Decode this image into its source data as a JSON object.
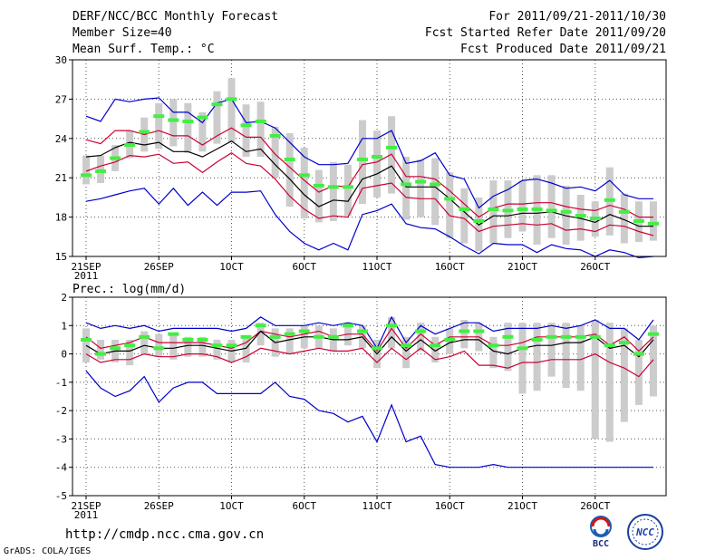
{
  "header": {
    "title": "DERF/NCC/BCC Monthly Forecast",
    "member_size": "Member Size=40",
    "variable": "Mean Surf. Temp.: °C",
    "forecast_period": "For 2011/09/21-2011/10/30",
    "start_date": "Fcst Started Refer Date 2011/09/20",
    "produced_date": "Fcst Produced Date 2011/09/21"
  },
  "footer": {
    "url": "http://cmdp.ncc.cma.gov.cn",
    "credit": "GrADS: COLA/IGES",
    "logo_bcc": "BCC",
    "logo_ncc": "NCC"
  },
  "colors": {
    "ensemble_mean": "#000000",
    "spread": "#cc0033",
    "extremes": "#0000cc",
    "members_median": "#44ee44",
    "members_box": "#cccccc"
  },
  "chart_data": [
    {
      "type": "line",
      "title": "Mean Surf. Temp.: °C",
      "ylim": [
        15,
        30
      ],
      "ylabel_ticks": [
        "30",
        "27",
        "24",
        "21",
        "18",
        "15"
      ],
      "yticks": [
        30,
        27,
        24,
        21,
        18,
        15
      ],
      "xticks": [
        {
          "label": "21SEP",
          "sublabel": "2011",
          "day": 0
        },
        {
          "label": "26SEP",
          "day": 5
        },
        {
          "label": "1OCT",
          "day": 10
        },
        {
          "label": "6OCT",
          "day": 15
        },
        {
          "label": "11OCT",
          "day": 20
        },
        {
          "label": "16OCT",
          "day": 25
        },
        {
          "label": "21OCT",
          "day": 30
        },
        {
          "label": "26OCT",
          "day": 35
        }
      ],
      "x_days": [
        0,
        1,
        2,
        3,
        4,
        5,
        6,
        7,
        8,
        9,
        10,
        11,
        12,
        13,
        14,
        15,
        16,
        17,
        18,
        19,
        20,
        21,
        22,
        23,
        24,
        25,
        26,
        27,
        28,
        29,
        30,
        31,
        32,
        33,
        34,
        35,
        36,
        37,
        38,
        39
      ],
      "series": [
        {
          "name": "max",
          "role": "extremes",
          "values": [
            25.7,
            25.3,
            27.0,
            26.8,
            27.0,
            27.1,
            26.0,
            26.0,
            25.2,
            26.7,
            27.0,
            25.2,
            25.3,
            24.8,
            23.7,
            22.6,
            22.0,
            22.0,
            22.1,
            24.0,
            24.0,
            24.6,
            22.1,
            22.3,
            22.9,
            21.2,
            20.9,
            18.7,
            19.6,
            20.1,
            20.8,
            20.9,
            20.6,
            20.2,
            20.3,
            20.0,
            20.8,
            19.7,
            19.4,
            19.4
          ]
        },
        {
          "name": "upper",
          "role": "spread",
          "values": [
            23.9,
            23.6,
            24.6,
            24.6,
            24.3,
            24.6,
            24.2,
            24.2,
            23.5,
            24.2,
            24.8,
            24.1,
            24.1,
            22.8,
            21.8,
            20.8,
            19.9,
            20.4,
            20.3,
            22.0,
            22.2,
            22.8,
            21.1,
            21.1,
            20.9,
            20.0,
            19.0,
            18.0,
            18.7,
            19.0,
            19.0,
            19.1,
            19.1,
            18.8,
            18.6,
            18.5,
            18.9,
            18.6,
            18.0,
            18.0
          ]
        },
        {
          "name": "mean",
          "role": "ensemble_mean",
          "values": [
            22.6,
            22.7,
            23.3,
            23.7,
            23.5,
            23.7,
            23.0,
            23.0,
            22.6,
            23.2,
            23.8,
            23.0,
            23.2,
            22.0,
            20.9,
            19.7,
            18.8,
            19.3,
            19.2,
            20.9,
            21.3,
            21.9,
            20.3,
            20.3,
            20.3,
            19.4,
            18.4,
            17.4,
            18.1,
            18.1,
            18.3,
            18.3,
            18.4,
            18.1,
            17.9,
            17.6,
            18.2,
            17.8,
            17.3,
            17.3
          ]
        },
        {
          "name": "lower",
          "role": "spread",
          "values": [
            21.5,
            21.9,
            22.2,
            22.7,
            22.6,
            22.8,
            22.1,
            22.2,
            21.4,
            22.2,
            22.9,
            22.1,
            21.9,
            20.9,
            19.6,
            18.6,
            17.9,
            18.1,
            18.0,
            20.2,
            20.4,
            20.6,
            19.5,
            19.4,
            19.4,
            18.1,
            17.9,
            16.9,
            17.3,
            17.4,
            17.5,
            17.4,
            17.5,
            17.0,
            17.1,
            16.9,
            17.4,
            17.3,
            16.9,
            16.6
          ]
        },
        {
          "name": "min",
          "role": "extremes",
          "values": [
            19.2,
            19.4,
            19.7,
            20.0,
            20.2,
            19.0,
            20.2,
            18.9,
            19.9,
            18.9,
            19.9,
            19.9,
            20.0,
            18.2,
            16.9,
            16.0,
            15.5,
            16.0,
            15.5,
            18.2,
            18.5,
            19.0,
            17.5,
            17.2,
            17.1,
            16.5,
            15.8,
            15.2,
            16.0,
            15.9,
            15.9,
            15.3,
            15.9,
            15.6,
            15.5,
            15.0,
            15.5,
            15.3,
            14.9,
            15.0
          ]
        }
      ],
      "members_median": [
        21.2,
        21.5,
        22.5,
        23.5,
        24.5,
        25.7,
        25.4,
        25.3,
        25.6,
        26.6,
        27.0,
        25.0,
        25.3,
        24.2,
        22.4,
        21.2,
        20.4,
        20.3,
        20.3,
        22.4,
        22.6,
        23.3,
        20.5,
        20.7,
        20.5,
        19.4,
        18.6,
        17.7,
        18.6,
        18.5,
        18.6,
        18.6,
        18.5,
        18.4,
        18.1,
        17.9,
        19.3,
        18.4,
        17.7,
        17.5
      ],
      "members_box": [
        [
          20.5,
          22.7
        ],
        [
          20.6,
          22.7
        ],
        [
          21.5,
          23.5
        ],
        [
          22.5,
          24.6
        ],
        [
          23.0,
          25.6
        ],
        [
          23.2,
          26.7
        ],
        [
          23.4,
          27.0
        ],
        [
          22.9,
          26.7
        ],
        [
          23.0,
          26.0
        ],
        [
          23.6,
          27.6
        ],
        [
          23.7,
          28.6
        ],
        [
          22.6,
          26.6
        ],
        [
          22.6,
          26.8
        ],
        [
          21.0,
          24.9
        ],
        [
          18.8,
          24.4
        ],
        [
          17.9,
          23.3
        ],
        [
          17.6,
          21.6
        ],
        [
          17.7,
          22.2
        ],
        [
          18.1,
          22.0
        ],
        [
          19.0,
          25.4
        ],
        [
          19.5,
          24.6
        ],
        [
          19.8,
          25.7
        ],
        [
          17.8,
          22.6
        ],
        [
          18.0,
          22.4
        ],
        [
          17.4,
          22.5
        ],
        [
          16.4,
          21.4
        ],
        [
          16.0,
          20.2
        ],
        [
          15.4,
          19.5
        ],
        [
          16.0,
          20.8
        ],
        [
          16.4,
          20.8
        ],
        [
          16.9,
          20.8
        ],
        [
          15.9,
          21.2
        ],
        [
          16.4,
          21.2
        ],
        [
          15.9,
          20.4
        ],
        [
          16.2,
          19.7
        ],
        [
          16.5,
          19.2
        ],
        [
          16.6,
          21.8
        ],
        [
          16.0,
          19.8
        ],
        [
          16.1,
          19.2
        ],
        [
          16.2,
          19.2
        ]
      ]
    },
    {
      "type": "line",
      "title": "Prec.: log(mm/d)",
      "ylim": [
        -5,
        2
      ],
      "ylabel_ticks": [
        "2",
        "1",
        "0",
        "-1",
        "-2",
        "-3",
        "-4",
        "-5"
      ],
      "yticks": [
        2,
        1,
        0,
        -1,
        -2,
        -3,
        -4,
        -5
      ],
      "xticks": [
        {
          "label": "21SEP",
          "sublabel": "2011",
          "day": 0
        },
        {
          "label": "26SEP",
          "day": 5
        },
        {
          "label": "1OCT",
          "day": 10
        },
        {
          "label": "6OCT",
          "day": 15
        },
        {
          "label": "11OCT",
          "day": 20
        },
        {
          "label": "16OCT",
          "day": 25
        },
        {
          "label": "21OCT",
          "day": 30
        },
        {
          "label": "26OCT",
          "day": 35
        }
      ],
      "x_days": [
        0,
        1,
        2,
        3,
        4,
        5,
        6,
        7,
        8,
        9,
        10,
        11,
        12,
        13,
        14,
        15,
        16,
        17,
        18,
        19,
        20,
        21,
        22,
        23,
        24,
        25,
        26,
        27,
        28,
        29,
        30,
        31,
        32,
        33,
        34,
        35,
        36,
        37,
        38,
        39
      ],
      "series": [
        {
          "name": "max",
          "role": "extremes",
          "values": [
            1.1,
            0.9,
            1.0,
            0.9,
            1.0,
            0.8,
            0.9,
            0.9,
            0.9,
            0.9,
            0.8,
            0.9,
            1.3,
            1.0,
            1.0,
            1.0,
            1.1,
            1.0,
            1.1,
            1.0,
            0.2,
            1.3,
            0.4,
            1.0,
            0.7,
            0.9,
            1.1,
            1.1,
            0.8,
            0.9,
            0.9,
            0.9,
            1.0,
            0.9,
            1.0,
            1.2,
            0.9,
            0.9,
            0.5,
            1.2
          ]
        },
        {
          "name": "upper",
          "role": "spread",
          "values": [
            0.6,
            0.2,
            0.3,
            0.4,
            0.6,
            0.4,
            0.4,
            0.4,
            0.4,
            0.3,
            0.2,
            0.4,
            0.8,
            0.7,
            0.6,
            0.7,
            0.8,
            0.6,
            0.7,
            0.7,
            0.1,
            0.9,
            0.2,
            0.7,
            0.3,
            0.6,
            0.6,
            0.6,
            0.3,
            0.3,
            0.4,
            0.6,
            0.6,
            0.6,
            0.6,
            0.7,
            0.3,
            0.6,
            0.1,
            0.6
          ]
        },
        {
          "name": "mean",
          "role": "ensemble_mean",
          "values": [
            0.3,
            0.0,
            0.1,
            0.1,
            0.3,
            0.2,
            0.2,
            0.3,
            0.3,
            0.2,
            0.1,
            0.2,
            0.8,
            0.4,
            0.5,
            0.6,
            0.6,
            0.5,
            0.5,
            0.6,
            0.0,
            0.6,
            0.1,
            0.5,
            0.1,
            0.4,
            0.5,
            0.5,
            0.1,
            0.0,
            0.2,
            0.3,
            0.3,
            0.4,
            0.4,
            0.6,
            0.2,
            0.3,
            -0.1,
            0.5
          ]
        },
        {
          "name": "lower",
          "role": "spread",
          "values": [
            0.0,
            -0.3,
            -0.2,
            -0.2,
            0.0,
            -0.1,
            -0.1,
            0.0,
            0.0,
            -0.1,
            -0.3,
            -0.1,
            0.2,
            0.1,
            0.0,
            0.1,
            0.2,
            0.1,
            0.1,
            0.2,
            -0.3,
            0.2,
            -0.2,
            0.2,
            -0.2,
            -0.1,
            0.1,
            -0.4,
            -0.4,
            -0.5,
            -0.3,
            -0.3,
            -0.2,
            -0.2,
            -0.2,
            0.0,
            -0.3,
            -0.5,
            -0.8,
            -0.2
          ]
        },
        {
          "name": "min",
          "role": "extremes",
          "values": [
            -0.6,
            -1.2,
            -1.5,
            -1.3,
            -0.8,
            -1.7,
            -1.2,
            -1.0,
            -1.0,
            -1.4,
            -1.4,
            -1.4,
            -1.4,
            -1.0,
            -1.5,
            -1.6,
            -2.0,
            -2.1,
            -2.4,
            -2.2,
            -3.1,
            -1.8,
            -3.1,
            -2.9,
            -3.9,
            -4.0,
            -4.0,
            -4.0,
            -3.9,
            -4.0,
            -4.0,
            -4.0,
            -4.0,
            -4.0,
            -4.0,
            -4.0,
            -4.0,
            -4.0,
            -4.0,
            -4.0
          ]
        }
      ],
      "members_median": [
        0.5,
        0.0,
        0.2,
        0.3,
        0.6,
        0.2,
        0.7,
        0.5,
        0.5,
        0.3,
        0.3,
        0.6,
        1.0,
        0.6,
        0.7,
        0.8,
        0.6,
        0.6,
        1.0,
        0.8,
        0.2,
        1.0,
        0.3,
        0.8,
        0.3,
        0.5,
        0.8,
        0.8,
        0.3,
        0.6,
        0.2,
        0.5,
        0.6,
        0.6,
        0.6,
        0.6,
        0.3,
        0.4,
        0.0,
        0.7
      ],
      "members_box": [
        [
          -0.3,
          0.9
        ],
        [
          -0.2,
          0.5
        ],
        [
          -0.3,
          0.5
        ],
        [
          -0.4,
          0.5
        ],
        [
          0.0,
          0.8
        ],
        [
          -0.1,
          0.7
        ],
        [
          -0.2,
          0.7
        ],
        [
          -0.1,
          0.6
        ],
        [
          -0.1,
          0.6
        ],
        [
          -0.2,
          0.5
        ],
        [
          -0.3,
          0.5
        ],
        [
          -0.3,
          0.6
        ],
        [
          0.3,
          1.1
        ],
        [
          -0.1,
          0.9
        ],
        [
          0.0,
          0.9
        ],
        [
          0.2,
          1.0
        ],
        [
          0.2,
          1.0
        ],
        [
          0.1,
          0.9
        ],
        [
          0.3,
          1.1
        ],
        [
          0.2,
          1.0
        ],
        [
          -0.5,
          0.5
        ],
        [
          0.2,
          1.3
        ],
        [
          -0.5,
          0.6
        ],
        [
          0.1,
          1.1
        ],
        [
          -0.3,
          0.6
        ],
        [
          0.0,
          0.9
        ],
        [
          0.2,
          1.2
        ],
        [
          0.1,
          1.1
        ],
        [
          -0.5,
          0.6
        ],
        [
          -0.6,
          1.1
        ],
        [
          -1.4,
          1.1
        ],
        [
          -1.3,
          1.1
        ],
        [
          -0.8,
          1.1
        ],
        [
          -1.2,
          1.1
        ],
        [
          -1.3,
          1.0
        ],
        [
          -3.0,
          1.2
        ],
        [
          -3.1,
          1.1
        ],
        [
          -2.4,
          0.9
        ],
        [
          -1.8,
          0.5
        ],
        [
          -1.5,
          1.0
        ]
      ]
    }
  ]
}
